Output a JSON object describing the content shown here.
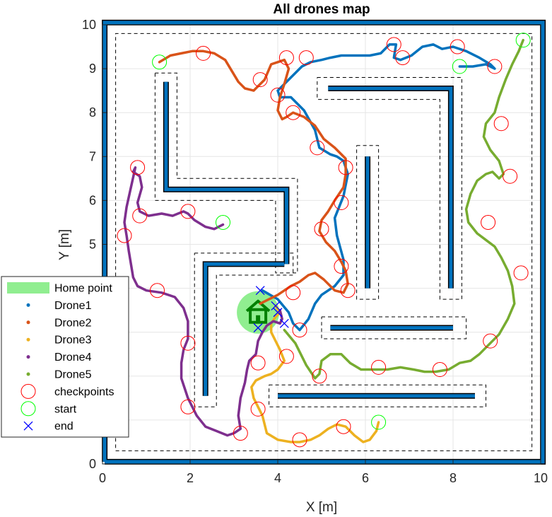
{
  "chart_data": {
    "type": "scatter",
    "title": "All drones map",
    "xlabel": "X [m]",
    "ylabel": "Y [m]",
    "xlim": [
      0,
      10
    ],
    "ylim": [
      0,
      10
    ],
    "xticks": [
      0,
      2,
      4,
      6,
      8,
      10
    ],
    "yticks": [
      0,
      1,
      2,
      3,
      4,
      5,
      6,
      7,
      8,
      9,
      10
    ],
    "grid": true,
    "legend_position": "bottom-left",
    "colors": {
      "wall": "#0072BD",
      "Drone1": "#0072BD",
      "Drone2": "#D95319",
      "Drone3": "#EDB120",
      "Drone4": "#7E2F8E",
      "Drone5": "#77AC30",
      "checkpoints": "#FF0000",
      "start": "#00FF00",
      "end": "#0000FF",
      "home": "#90EE90",
      "home_icon": "#008000"
    },
    "home_point": {
      "x": 3.55,
      "y": 3.45
    },
    "walls": [
      {
        "x": [
          0.05,
          10.05,
          10.05,
          0.05,
          0.05
        ],
        "y": [
          0.05,
          0.05,
          10.05,
          10.05,
          0.05
        ]
      },
      {
        "x": [
          1.45,
          1.45,
          4.2,
          4.2
        ],
        "y": [
          8.7,
          6.25,
          6.25,
          4.55
        ]
      },
      {
        "x": [
          2.35,
          2.35,
          4.15
        ],
        "y": [
          1.55,
          4.55,
          4.55
        ]
      },
      {
        "x": [
          5.15,
          7.95,
          7.95
        ],
        "y": [
          8.55,
          8.55,
          4.0
        ]
      },
      {
        "x": [
          6.05,
          6.05
        ],
        "y": [
          7.0,
          4.0
        ]
      },
      {
        "x": [
          5.2,
          8.0
        ],
        "y": [
          3.1,
          3.1
        ]
      },
      {
        "x": [
          4.0,
          8.5
        ],
        "y": [
          1.55,
          1.55
        ]
      }
    ],
    "safety_zones": [
      {
        "x": [
          0.3,
          9.8,
          9.8,
          0.3,
          0.3
        ],
        "y": [
          0.3,
          0.3,
          9.8,
          9.8,
          0.3
        ]
      },
      {
        "x": [
          1.2,
          1.7,
          1.7,
          4.45,
          4.45,
          3.95,
          3.95,
          1.2,
          1.2
        ],
        "y": [
          8.9,
          8.9,
          6.5,
          6.5,
          4.35,
          4.35,
          6.0,
          6.0,
          8.9
        ]
      },
      {
        "x": [
          2.1,
          4.35,
          4.35,
          2.6,
          2.6,
          2.1,
          2.1
        ],
        "y": [
          4.8,
          4.8,
          4.3,
          4.3,
          1.3,
          1.3,
          4.8
        ]
      },
      {
        "x": [
          4.9,
          8.2,
          8.2,
          7.7,
          7.7,
          4.9,
          4.9
        ],
        "y": [
          8.8,
          8.8,
          3.75,
          3.75,
          8.3,
          8.3,
          8.8
        ]
      },
      {
        "x": [
          5.8,
          6.3,
          6.3,
          5.8,
          5.8
        ],
        "y": [
          7.25,
          7.25,
          3.75,
          3.75,
          7.25
        ]
      },
      {
        "x": [
          5.0,
          8.3,
          8.3,
          5.0,
          5.0
        ],
        "y": [
          3.35,
          3.35,
          2.85,
          2.85,
          3.35
        ]
      },
      {
        "x": [
          3.8,
          8.75,
          8.75,
          3.8,
          3.8
        ],
        "y": [
          1.8,
          1.8,
          1.3,
          1.3,
          1.8
        ]
      }
    ],
    "series": [
      {
        "name": "Drone1",
        "x": [
          3.65,
          4.0,
          4.25,
          4.35,
          4.5,
          4.7,
          4.85,
          5.0,
          5.3,
          5.5,
          5.5,
          5.35,
          5.3,
          5.5,
          5.6,
          5.5,
          5.35,
          5.2,
          4.95,
          4.85,
          4.6,
          4.3,
          4.05,
          4.0,
          4.3,
          4.55,
          4.75,
          5.0,
          5.2,
          5.45,
          5.8,
          6.1,
          6.35,
          6.55,
          6.7,
          6.65,
          6.8,
          7.05,
          7.3,
          7.55,
          7.75,
          8.0,
          8.3,
          8.6,
          8.85,
          8.95,
          8.75,
          8.45,
          8.15
        ],
        "y": [
          3.95,
          3.75,
          3.45,
          3.2,
          3.05,
          3.3,
          3.65,
          3.85,
          4.05,
          4.3,
          4.65,
          5.2,
          5.6,
          6.1,
          6.6,
          6.9,
          7.0,
          7.05,
          7.2,
          7.6,
          8.05,
          8.35,
          8.35,
          8.5,
          8.8,
          9.05,
          9.15,
          9.2,
          9.25,
          9.3,
          9.3,
          9.3,
          9.35,
          9.55,
          9.55,
          9.25,
          9.2,
          9.3,
          9.5,
          9.55,
          9.45,
          9.5,
          9.4,
          9.25,
          9.1,
          9.0,
          9.1,
          9.05,
          9.05
        ]
      },
      {
        "name": "Drone2",
        "x": [
          1.3,
          1.55,
          1.8,
          2.05,
          2.3,
          2.55,
          2.8,
          2.95,
          3.1,
          3.25,
          3.45,
          3.7,
          3.85,
          4.0,
          4.15,
          4.25,
          4.15,
          4.05,
          4.0,
          4.1,
          4.2,
          4.35,
          4.6,
          4.85,
          5.05,
          5.3,
          5.55,
          5.55,
          5.5,
          5.3,
          5.15,
          5.0,
          4.95,
          5.1,
          5.3,
          5.45,
          5.55,
          5.6,
          5.5,
          5.3,
          5.05,
          4.85,
          4.7,
          4.5,
          4.3,
          4.15,
          4.0,
          3.8,
          3.6
        ],
        "y": [
          9.15,
          9.3,
          9.35,
          9.4,
          9.4,
          9.35,
          9.2,
          8.95,
          8.7,
          8.55,
          8.5,
          8.75,
          9.1,
          9.15,
          9.2,
          9.0,
          8.65,
          8.35,
          8.05,
          7.85,
          7.9,
          8.0,
          7.9,
          7.7,
          7.4,
          7.2,
          6.95,
          6.6,
          6.3,
          6.0,
          5.75,
          5.55,
          5.3,
          5.05,
          4.85,
          4.6,
          4.4,
          4.1,
          3.9,
          3.95,
          4.2,
          4.35,
          4.3,
          4.15,
          4.05,
          3.95,
          3.85,
          3.75,
          3.65
        ]
      },
      {
        "name": "Drone3",
        "x": [
          6.3,
          6.25,
          6.1,
          5.95,
          5.75,
          5.55,
          5.35,
          5.15,
          4.95,
          4.75,
          4.5,
          4.3,
          4.0,
          3.75,
          3.65,
          3.55,
          3.45,
          3.4,
          3.5,
          3.7,
          3.85,
          4.0,
          4.15,
          4.05,
          3.95,
          3.85,
          3.85,
          3.95,
          4.05,
          3.95
        ],
        "y": [
          0.95,
          0.75,
          0.55,
          0.5,
          0.65,
          0.85,
          0.9,
          0.8,
          0.65,
          0.55,
          0.5,
          0.5,
          0.55,
          0.7,
          1.1,
          1.3,
          1.5,
          1.75,
          1.9,
          2.0,
          2.05,
          2.15,
          2.35,
          2.6,
          2.8,
          3.0,
          3.2,
          3.35,
          3.45,
          3.6
        ]
      },
      {
        "name": "Drone4",
        "x": [
          2.75,
          2.55,
          2.35,
          2.1,
          1.95,
          1.85,
          1.6,
          1.35,
          1.05,
          0.85,
          0.8,
          0.9,
          0.85,
          0.7,
          0.75,
          0.65,
          0.55,
          0.5,
          0.55,
          0.6,
          0.65,
          0.7,
          0.8,
          1.0,
          1.35,
          1.65,
          1.85,
          1.95,
          1.95,
          1.85,
          1.8,
          1.8,
          1.95,
          2.15,
          2.35,
          2.6,
          2.85,
          3.0,
          3.15,
          3.1,
          3.15,
          3.25,
          3.3,
          3.35,
          3.5,
          3.55,
          3.65,
          3.75,
          3.9,
          4.05,
          4.1,
          4.05
        ],
        "y": [
          5.45,
          5.35,
          5.4,
          5.55,
          5.7,
          5.75,
          5.65,
          5.7,
          5.65,
          5.75,
          5.95,
          6.3,
          6.55,
          6.65,
          6.75,
          6.3,
          5.85,
          5.5,
          5.2,
          4.85,
          4.55,
          4.25,
          4.05,
          3.95,
          3.9,
          3.8,
          3.55,
          3.25,
          2.85,
          2.6,
          2.3,
          1.95,
          1.5,
          1.1,
          0.85,
          0.75,
          0.65,
          0.7,
          0.8,
          1.1,
          1.5,
          1.85,
          2.15,
          2.35,
          2.5,
          2.8,
          3.0,
          3.15,
          3.25,
          3.2,
          3.3,
          3.5
        ]
      },
      {
        "name": "Drone5",
        "x": [
          9.6,
          9.5,
          9.35,
          9.2,
          9.05,
          8.95,
          8.75,
          8.7,
          8.85,
          9.05,
          9.15,
          9.05,
          8.9,
          8.75,
          8.55,
          8.4,
          8.3,
          8.35,
          8.55,
          8.75,
          8.95,
          9.1,
          9.25,
          9.35,
          9.4,
          9.25,
          9.05,
          8.8,
          8.6,
          8.4,
          8.15,
          7.9,
          7.6,
          7.35,
          7.1,
          6.8,
          6.5,
          6.2,
          5.9,
          5.65,
          5.45,
          5.2,
          5.0,
          4.95,
          4.85,
          4.65,
          4.4,
          4.15
        ],
        "y": [
          9.65,
          9.4,
          9.1,
          8.75,
          8.35,
          8.0,
          7.75,
          7.45,
          7.15,
          6.9,
          6.6,
          6.5,
          6.65,
          6.6,
          6.45,
          6.15,
          5.8,
          5.5,
          5.25,
          5.1,
          4.95,
          4.7,
          4.4,
          4.05,
          3.65,
          3.3,
          2.95,
          2.7,
          2.5,
          2.35,
          2.3,
          2.15,
          2.1,
          2.1,
          2.15,
          2.2,
          2.15,
          2.15,
          2.15,
          2.3,
          2.5,
          2.5,
          2.35,
          2.05,
          1.95,
          2.25,
          2.75,
          3.05
        ]
      }
    ],
    "checkpoints": [
      {
        "x": 2.3,
        "y": 9.35
      },
      {
        "x": 3.6,
        "y": 8.75
      },
      {
        "x": 4.2,
        "y": 9.25
      },
      {
        "x": 4.0,
        "y": 8.4
      },
      {
        "x": 4.65,
        "y": 9.25
      },
      {
        "x": 4.35,
        "y": 8.0
      },
      {
        "x": 4.9,
        "y": 7.2
      },
      {
        "x": 5.55,
        "y": 6.75
      },
      {
        "x": 5.45,
        "y": 5.95
      },
      {
        "x": 5.0,
        "y": 5.35
      },
      {
        "x": 5.45,
        "y": 4.5
      },
      {
        "x": 5.6,
        "y": 3.95
      },
      {
        "x": 4.35,
        "y": 3.9
      },
      {
        "x": 4.5,
        "y": 3.05
      },
      {
        "x": 6.65,
        "y": 9.55
      },
      {
        "x": 6.85,
        "y": 9.25
      },
      {
        "x": 8.1,
        "y": 9.5
      },
      {
        "x": 8.95,
        "y": 9.05
      },
      {
        "x": 9.1,
        "y": 7.75
      },
      {
        "x": 9.3,
        "y": 6.55
      },
      {
        "x": 8.8,
        "y": 5.5
      },
      {
        "x": 9.55,
        "y": 4.35
      },
      {
        "x": 8.85,
        "y": 2.8
      },
      {
        "x": 7.7,
        "y": 2.15
      },
      {
        "x": 6.3,
        "y": 2.2
      },
      {
        "x": 4.95,
        "y": 2.0
      },
      {
        "x": 4.2,
        "y": 2.45
      },
      {
        "x": 3.55,
        "y": 2.3
      },
      {
        "x": 3.55,
        "y": 1.25
      },
      {
        "x": 4.5,
        "y": 0.55
      },
      {
        "x": 5.5,
        "y": 0.85
      },
      {
        "x": 3.15,
        "y": 0.7
      },
      {
        "x": 1.95,
        "y": 1.3
      },
      {
        "x": 1.95,
        "y": 2.75
      },
      {
        "x": 1.25,
        "y": 3.95
      },
      {
        "x": 0.5,
        "y": 5.2
      },
      {
        "x": 0.85,
        "y": 5.65
      },
      {
        "x": 0.8,
        "y": 6.75
      },
      {
        "x": 1.95,
        "y": 5.75
      }
    ],
    "starts": [
      {
        "x": 1.3,
        "y": 9.15
      },
      {
        "x": 9.6,
        "y": 9.65
      },
      {
        "x": 8.15,
        "y": 9.05
      },
      {
        "x": 2.75,
        "y": 5.5
      },
      {
        "x": 6.3,
        "y": 0.95
      }
    ],
    "ends": [
      {
        "x": 3.6,
        "y": 3.95
      },
      {
        "x": 4.0,
        "y": 3.45
      },
      {
        "x": 3.95,
        "y": 3.6
      },
      {
        "x": 4.15,
        "y": 3.2
      },
      {
        "x": 3.55,
        "y": 3.1
      }
    ],
    "legend": [
      "Home point",
      "Drone1",
      "Drone2",
      "Drone3",
      "Drone4",
      "Drone5",
      "checkpoints",
      "start",
      "end"
    ]
  }
}
